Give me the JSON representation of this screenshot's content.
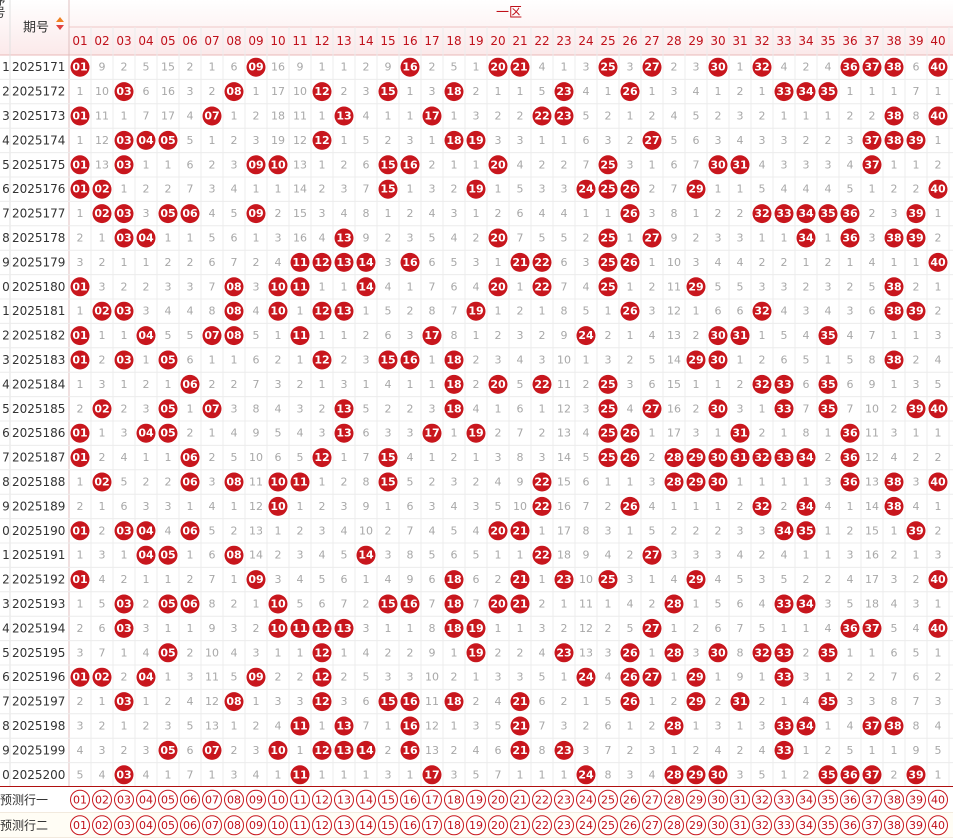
{
  "header": {
    "serial": "序号",
    "issue": "期号",
    "zone": "一区"
  },
  "columns": [
    "01",
    "02",
    "03",
    "04",
    "05",
    "06",
    "07",
    "08",
    "09",
    "10",
    "11",
    "12",
    "13",
    "14",
    "15",
    "16",
    "17",
    "18",
    "19",
    "20",
    "21",
    "22",
    "23",
    "24",
    "25",
    "26",
    "27",
    "28",
    "29",
    "30",
    "31",
    "32",
    "33",
    "34",
    "35",
    "36",
    "37",
    "38",
    "39",
    "40"
  ],
  "rows": [
    {
      "serial": "1",
      "issue": "2025171",
      "cells": [
        "01",
        9,
        2,
        5,
        15,
        2,
        1,
        6,
        "09",
        16,
        9,
        1,
        1,
        2,
        9,
        "16",
        2,
        5,
        1,
        "20",
        "21",
        4,
        1,
        3,
        "25",
        3,
        "27",
        2,
        3,
        "30",
        1,
        "32",
        4,
        2,
        4,
        "36",
        "37",
        "38",
        6,
        "40"
      ]
    },
    {
      "serial": "2",
      "issue": "2025172",
      "cells": [
        1,
        10,
        "03",
        6,
        16,
        3,
        2,
        "08",
        1,
        17,
        10,
        "12",
        2,
        3,
        "15",
        1,
        3,
        "18",
        2,
        1,
        1,
        5,
        "23",
        4,
        1,
        "26",
        1,
        3,
        4,
        1,
        2,
        1,
        "33",
        "34",
        "35",
        1,
        1,
        1,
        7,
        1
      ]
    },
    {
      "serial": "3",
      "issue": "2025173",
      "cells": [
        "01",
        11,
        1,
        7,
        17,
        4,
        "07",
        1,
        2,
        18,
        11,
        1,
        "13",
        4,
        1,
        1,
        "17",
        1,
        3,
        2,
        2,
        "22",
        "23",
        5,
        2,
        1,
        2,
        4,
        5,
        2,
        3,
        2,
        1,
        1,
        1,
        2,
        2,
        "38",
        8,
        "40"
      ]
    },
    {
      "serial": "4",
      "issue": "2025174",
      "cells": [
        1,
        12,
        "03",
        "04",
        "05",
        5,
        1,
        2,
        3,
        19,
        12,
        "12",
        1,
        5,
        2,
        3,
        1,
        "18",
        "19",
        3,
        3,
        1,
        1,
        6,
        3,
        2,
        "27",
        5,
        6,
        3,
        4,
        3,
        3,
        2,
        2,
        3,
        "37",
        "38",
        "39",
        1
      ]
    },
    {
      "serial": "5",
      "issue": "2025175",
      "cells": [
        "01",
        13,
        "03",
        1,
        1,
        6,
        2,
        3,
        "09",
        "10",
        13,
        1,
        2,
        6,
        "15",
        "16",
        2,
        1,
        1,
        "20",
        4,
        2,
        2,
        7,
        "25",
        3,
        1,
        6,
        7,
        "30",
        "31",
        4,
        3,
        3,
        3,
        4,
        "37",
        1,
        1,
        2
      ]
    },
    {
      "serial": "6",
      "issue": "2025176",
      "cells": [
        "01",
        "02",
        1,
        2,
        2,
        7,
        3,
        4,
        1,
        1,
        14,
        2,
        3,
        7,
        "15",
        1,
        3,
        2,
        "19",
        1,
        5,
        3,
        3,
        "24",
        "25",
        "26",
        2,
        7,
        "29",
        1,
        1,
        5,
        4,
        4,
        4,
        5,
        1,
        2,
        2,
        "40"
      ]
    },
    {
      "serial": "7",
      "issue": "2025177",
      "cells": [
        1,
        "02",
        "03",
        3,
        "05",
        "06",
        4,
        5,
        "09",
        2,
        15,
        3,
        4,
        8,
        1,
        2,
        4,
        3,
        1,
        2,
        6,
        4,
        4,
        1,
        1,
        "26",
        3,
        8,
        1,
        2,
        2,
        "32",
        "33",
        "34",
        "35",
        "36",
        2,
        3,
        "39",
        1
      ]
    },
    {
      "serial": "8",
      "issue": "2025178",
      "cells": [
        2,
        1,
        "03",
        "04",
        1,
        1,
        5,
        6,
        1,
        3,
        16,
        4,
        "13",
        9,
        2,
        3,
        5,
        4,
        2,
        "20",
        7,
        5,
        5,
        2,
        "25",
        1,
        "27",
        9,
        2,
        3,
        3,
        1,
        1,
        "34",
        1,
        "36",
        3,
        "38",
        "39",
        2
      ]
    },
    {
      "serial": "9",
      "issue": "2025179",
      "cells": [
        3,
        2,
        1,
        1,
        2,
        2,
        6,
        7,
        2,
        4,
        "11",
        "12",
        "13",
        "14",
        3,
        "16",
        6,
        5,
        3,
        1,
        "21",
        "22",
        6,
        3,
        "25",
        "26",
        1,
        10,
        3,
        4,
        4,
        2,
        2,
        1,
        2,
        1,
        4,
        1,
        1,
        "40"
      ]
    },
    {
      "serial": "0",
      "issue": "2025180",
      "cells": [
        "01",
        3,
        2,
        2,
        3,
        3,
        7,
        "08",
        3,
        "10",
        "11",
        1,
        1,
        "14",
        4,
        1,
        7,
        6,
        4,
        "20",
        1,
        "22",
        7,
        4,
        "25",
        1,
        2,
        11,
        "29",
        5,
        5,
        3,
        3,
        2,
        3,
        2,
        5,
        "38",
        2,
        1
      ]
    },
    {
      "serial": "1",
      "issue": "2025181",
      "cells": [
        1,
        "02",
        "03",
        3,
        4,
        4,
        8,
        "08",
        4,
        "10",
        1,
        "12",
        "13",
        1,
        5,
        2,
        8,
        7,
        "19",
        1,
        2,
        1,
        8,
        5,
        1,
        "26",
        3,
        12,
        1,
        6,
        6,
        "32",
        4,
        3,
        4,
        3,
        6,
        "38",
        "39",
        2
      ]
    },
    {
      "serial": "2",
      "issue": "2025182",
      "cells": [
        "01",
        1,
        1,
        "04",
        5,
        5,
        "07",
        "08",
        5,
        1,
        "11",
        1,
        1,
        2,
        6,
        3,
        "17",
        8,
        1,
        2,
        3,
        2,
        9,
        "24",
        2,
        1,
        4,
        13,
        2,
        "30",
        "31",
        1,
        5,
        4,
        "35",
        4,
        7,
        1,
        1,
        3
      ]
    },
    {
      "serial": "3",
      "issue": "2025183",
      "cells": [
        "01",
        2,
        "03",
        1,
        "05",
        6,
        1,
        1,
        6,
        2,
        1,
        "12",
        2,
        3,
        "15",
        "16",
        1,
        "18",
        2,
        3,
        4,
        3,
        10,
        1,
        3,
        2,
        5,
        14,
        "29",
        "30",
        1,
        2,
        6,
        5,
        1,
        5,
        8,
        "38",
        2,
        4
      ]
    },
    {
      "serial": "4",
      "issue": "2025184",
      "cells": [
        1,
        3,
        1,
        2,
        1,
        "06",
        2,
        2,
        7,
        3,
        2,
        1,
        3,
        1,
        4,
        1,
        1,
        "18",
        2,
        "20",
        5,
        "22",
        11,
        2,
        "25",
        3,
        6,
        15,
        1,
        1,
        2,
        "32",
        "33",
        6,
        "35",
        6,
        9,
        1,
        3,
        5
      ]
    },
    {
      "serial": "5",
      "issue": "2025185",
      "cells": [
        2,
        "02",
        2,
        3,
        "05",
        1,
        "07",
        3,
        8,
        4,
        3,
        2,
        "13",
        5,
        2,
        2,
        3,
        "18",
        4,
        1,
        6,
        1,
        12,
        3,
        "25",
        4,
        "27",
        16,
        2,
        "30",
        3,
        1,
        "33",
        7,
        "35",
        7,
        10,
        2,
        "39",
        "40"
      ]
    },
    {
      "serial": "6",
      "issue": "2025186",
      "cells": [
        "01",
        1,
        3,
        "04",
        "05",
        2,
        1,
        4,
        9,
        5,
        4,
        3,
        "13",
        6,
        3,
        3,
        "17",
        1,
        "19",
        2,
        7,
        2,
        13,
        4,
        "25",
        "26",
        1,
        17,
        3,
        1,
        "31",
        2,
        1,
        8,
        1,
        "36",
        11,
        3,
        1,
        1
      ]
    },
    {
      "serial": "7",
      "issue": "2025187",
      "cells": [
        "01",
        2,
        4,
        1,
        1,
        "06",
        2,
        5,
        10,
        6,
        5,
        "12",
        1,
        7,
        "15",
        4,
        1,
        2,
        1,
        3,
        8,
        3,
        14,
        5,
        "25",
        "26",
        2,
        "28",
        "29",
        "30",
        "31",
        "32",
        "33",
        "34",
        2,
        "36",
        12,
        4,
        2,
        2
      ]
    },
    {
      "serial": "8",
      "issue": "2025188",
      "cells": [
        1,
        "02",
        5,
        2,
        2,
        "06",
        3,
        "08",
        11,
        "10",
        "11",
        1,
        2,
        8,
        "15",
        5,
        2,
        3,
        2,
        4,
        9,
        "22",
        15,
        6,
        1,
        1,
        3,
        "28",
        "29",
        "30",
        1,
        1,
        1,
        1,
        3,
        "36",
        13,
        "38",
        3,
        "40"
      ]
    },
    {
      "serial": "9",
      "issue": "2025189",
      "cells": [
        2,
        1,
        6,
        3,
        3,
        1,
        4,
        1,
        12,
        "10",
        1,
        2,
        3,
        9,
        1,
        6,
        3,
        4,
        3,
        5,
        10,
        "22",
        16,
        7,
        2,
        "26",
        4,
        1,
        1,
        1,
        2,
        "32",
        2,
        "34",
        4,
        1,
        14,
        "38",
        4,
        1
      ]
    },
    {
      "serial": "0",
      "issue": "2025190",
      "cells": [
        "01",
        2,
        "03",
        "04",
        4,
        "06",
        5,
        2,
        13,
        1,
        2,
        3,
        4,
        10,
        2,
        7,
        4,
        5,
        4,
        "20",
        "21",
        1,
        17,
        8,
        3,
        1,
        5,
        2,
        2,
        2,
        3,
        3,
        "34",
        "35",
        1,
        2,
        15,
        1,
        "39",
        2
      ]
    },
    {
      "serial": "1",
      "issue": "2025191",
      "cells": [
        1,
        3,
        1,
        "04",
        "05",
        1,
        6,
        "08",
        14,
        2,
        3,
        4,
        5,
        "14",
        3,
        8,
        5,
        6,
        5,
        1,
        1,
        "22",
        18,
        9,
        4,
        2,
        "27",
        3,
        3,
        3,
        4,
        2,
        4,
        1,
        1,
        3,
        16,
        2,
        1,
        3
      ]
    },
    {
      "serial": "2",
      "issue": "2025192",
      "cells": [
        "01",
        4,
        2,
        1,
        1,
        2,
        7,
        1,
        "09",
        3,
        4,
        5,
        6,
        1,
        4,
        9,
        6,
        "18",
        6,
        2,
        "21",
        1,
        "23",
        10,
        "25",
        3,
        1,
        4,
        "29",
        4,
        5,
        3,
        5,
        2,
        2,
        4,
        17,
        3,
        2,
        "40"
      ]
    },
    {
      "serial": "3",
      "issue": "2025193",
      "cells": [
        1,
        5,
        "03",
        2,
        "05",
        "06",
        8,
        2,
        1,
        "10",
        5,
        6,
        7,
        2,
        "15",
        "16",
        7,
        "18",
        7,
        "20",
        "21",
        2,
        1,
        11,
        1,
        4,
        2,
        "28",
        1,
        5,
        6,
        4,
        "33",
        "34",
        3,
        5,
        18,
        4,
        3,
        1
      ]
    },
    {
      "serial": "4",
      "issue": "2025194",
      "cells": [
        2,
        6,
        "03",
        3,
        1,
        1,
        9,
        3,
        2,
        "10",
        "11",
        "12",
        "13",
        3,
        1,
        1,
        8,
        "18",
        "19",
        1,
        1,
        3,
        2,
        12,
        2,
        5,
        "27",
        1,
        2,
        6,
        7,
        5,
        1,
        1,
        4,
        "36",
        "37",
        5,
        4,
        "40"
      ]
    },
    {
      "serial": "5",
      "issue": "2025195",
      "cells": [
        3,
        7,
        1,
        4,
        "05",
        2,
        10,
        4,
        3,
        1,
        1,
        "12",
        1,
        4,
        2,
        2,
        9,
        1,
        "19",
        2,
        2,
        4,
        "23",
        13,
        3,
        "26",
        1,
        "28",
        3,
        "30",
        8,
        "32",
        "33",
        2,
        "35",
        1,
        1,
        6,
        5,
        1
      ]
    },
    {
      "serial": "6",
      "issue": "2025196",
      "cells": [
        "01",
        "02",
        2,
        "04",
        1,
        3,
        11,
        5,
        "09",
        2,
        2,
        "12",
        2,
        5,
        3,
        3,
        10,
        2,
        1,
        3,
        3,
        5,
        1,
        "24",
        4,
        "26",
        "27",
        1,
        "29",
        1,
        9,
        1,
        "33",
        3,
        1,
        2,
        2,
        7,
        6,
        2
      ]
    },
    {
      "serial": "7",
      "issue": "2025197",
      "cells": [
        2,
        1,
        "03",
        1,
        2,
        4,
        12,
        "08",
        1,
        3,
        3,
        "12",
        3,
        6,
        "15",
        "16",
        11,
        "18",
        2,
        4,
        "21",
        6,
        2,
        1,
        5,
        "26",
        1,
        2,
        "29",
        2,
        "31",
        2,
        1,
        4,
        "35",
        3,
        3,
        8,
        7,
        3
      ]
    },
    {
      "serial": "8",
      "issue": "2025198",
      "cells": [
        3,
        2,
        1,
        2,
        3,
        5,
        13,
        1,
        2,
        4,
        "11",
        1,
        "13",
        7,
        1,
        "16",
        12,
        1,
        3,
        5,
        "21",
        7,
        3,
        2,
        6,
        1,
        2,
        "28",
        1,
        3,
        1,
        3,
        "33",
        "34",
        1,
        4,
        "37",
        "38",
        8,
        4
      ]
    },
    {
      "serial": "9",
      "issue": "2025199",
      "cells": [
        4,
        3,
        2,
        3,
        "05",
        6,
        "07",
        2,
        3,
        "10",
        1,
        "12",
        "13",
        "14",
        2,
        "16",
        13,
        2,
        4,
        6,
        "21",
        8,
        "23",
        3,
        7,
        2,
        3,
        1,
        2,
        4,
        2,
        4,
        "33",
        1,
        2,
        5,
        1,
        1,
        9,
        5
      ]
    },
    {
      "serial": "0",
      "issue": "2025200",
      "cells": [
        5,
        4,
        "03",
        4,
        1,
        7,
        1,
        3,
        4,
        1,
        "11",
        1,
        1,
        1,
        3,
        1,
        "17",
        3,
        5,
        7,
        1,
        1,
        1,
        "24",
        8,
        3,
        4,
        "28",
        "29",
        "30",
        3,
        5,
        1,
        2,
        "35",
        "36",
        "37",
        2,
        "39",
        1
      ]
    }
  ],
  "predict": [
    {
      "label": "预测行一"
    },
    {
      "label": "预测行二"
    }
  ]
}
